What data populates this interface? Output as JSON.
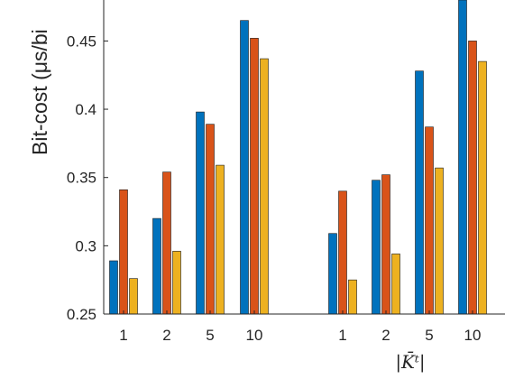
{
  "chart_data": {
    "type": "bar",
    "title": "",
    "ylabel": "Bit-cost (μs/bit)",
    "ylabel_visible": "Bit-cost (μs/bi",
    "xlabel": "|K̄ᵗ|",
    "ylim": [
      0.25,
      0.48
    ],
    "yticks": [
      0.25,
      0.3,
      0.35,
      0.4,
      0.45
    ],
    "ytick_labels": [
      "0.25",
      "0.3",
      "0.35",
      "0.4",
      "0.45"
    ],
    "grid": false,
    "groups": [
      {
        "categories": [
          "1",
          "2",
          "5",
          "10"
        ],
        "series": [
          {
            "values": [
              0.289,
              0.32,
              0.398,
              0.465
            ]
          },
          {
            "values": [
              0.341,
              0.354,
              0.389,
              0.452
            ]
          },
          {
            "values": [
              0.276,
              0.296,
              0.359,
              0.437
            ]
          }
        ]
      },
      {
        "categories": [
          "1",
          "2",
          "5",
          "10"
        ],
        "series": [
          {
            "values": [
              0.309,
              0.348,
              0.428,
              0.48
            ]
          },
          {
            "values": [
              0.34,
              0.352,
              0.387,
              0.45
            ]
          },
          {
            "values": [
              0.275,
              0.294,
              0.357,
              0.435
            ]
          }
        ]
      }
    ],
    "series_colors": [
      "#0072bd",
      "#d95319",
      "#edb120"
    ]
  }
}
